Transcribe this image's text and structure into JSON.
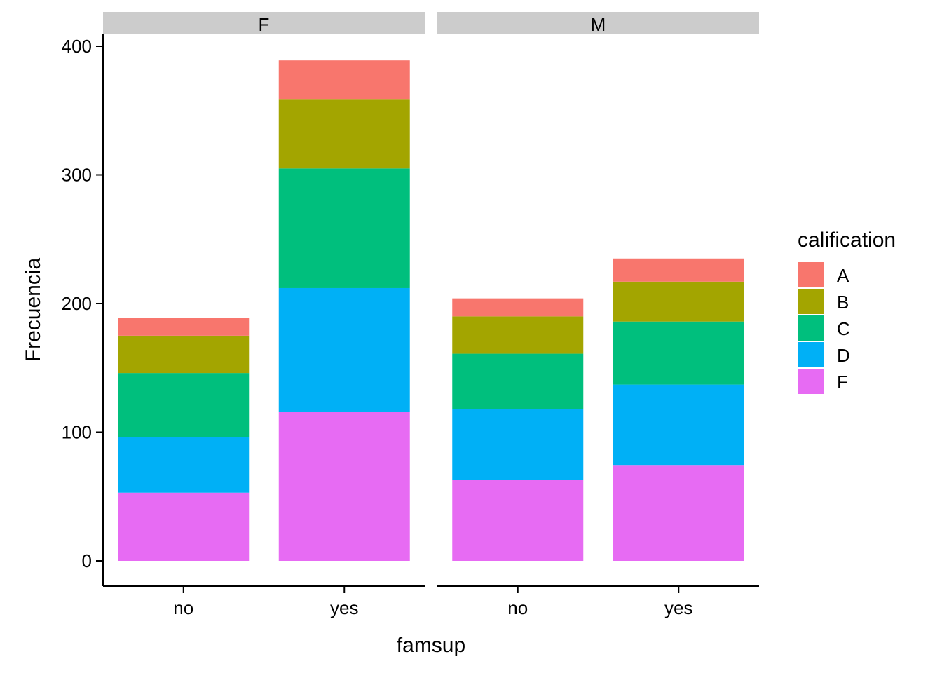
{
  "chart_data": {
    "type": "bar",
    "stacked": true,
    "facet_variable": "sex",
    "facets": [
      "F",
      "M"
    ],
    "categories": [
      "no",
      "yes"
    ],
    "xlabel": "famsup",
    "ylabel": "Frecuencia",
    "ylim": [
      0,
      400
    ],
    "yticks": [
      0,
      100,
      200,
      300,
      400
    ],
    "grid": false,
    "legend": {
      "title": "calification",
      "position": "right",
      "entries": [
        "A",
        "B",
        "C",
        "D",
        "F"
      ]
    },
    "colors": {
      "A": "#F8766D",
      "B": "#A3A500",
      "C": "#00BF7D",
      "D": "#00B0F6",
      "F": "#E76BF3"
    },
    "stack_order_bottom_to_top": [
      "F",
      "D",
      "C",
      "B",
      "A"
    ],
    "panels": [
      {
        "facet": "F",
        "series": [
          {
            "name": "A",
            "values": [
              14,
              30
            ]
          },
          {
            "name": "B",
            "values": [
              29,
              54
            ]
          },
          {
            "name": "C",
            "values": [
              50,
              93
            ]
          },
          {
            "name": "D",
            "values": [
              43,
              96
            ]
          },
          {
            "name": "F",
            "values": [
              53,
              116
            ]
          }
        ]
      },
      {
        "facet": "M",
        "series": [
          {
            "name": "A",
            "values": [
              14,
              18
            ]
          },
          {
            "name": "B",
            "values": [
              29,
              31
            ]
          },
          {
            "name": "C",
            "values": [
              43,
              49
            ]
          },
          {
            "name": "D",
            "values": [
              55,
              63
            ]
          },
          {
            "name": "F",
            "values": [
              63,
              74
            ]
          }
        ]
      }
    ]
  }
}
